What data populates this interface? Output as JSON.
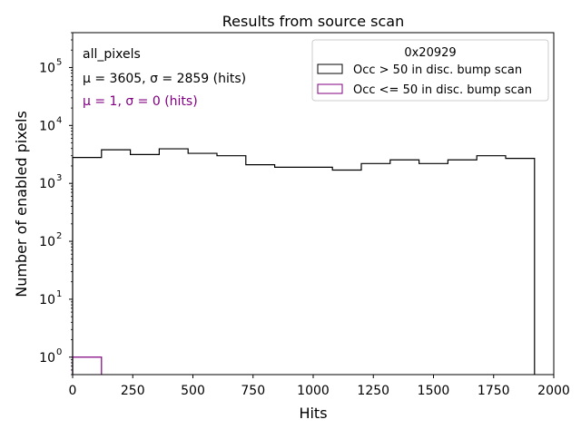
{
  "chart_data": {
    "type": "histogram",
    "title": "Results from source scan",
    "xlabel": "Hits",
    "ylabel": "Number of enabled pixels",
    "xlim": [
      0,
      2000
    ],
    "ylim": [
      0.5,
      400000
    ],
    "yscale": "log",
    "grid": false,
    "x_ticks": [
      0,
      250,
      500,
      750,
      1000,
      1250,
      1500,
      1750,
      2000
    ],
    "x_tick_labels": [
      "0",
      "250",
      "500",
      "750",
      "1000",
      "1250",
      "1500",
      "1750",
      "2000"
    ],
    "y_ticks": [
      1,
      10,
      100,
      1000,
      10000,
      100000
    ],
    "y_tick_labels": [
      "10",
      "10",
      "10",
      "10",
      "10",
      "10"
    ],
    "y_tick_exponents": [
      "0",
      "1",
      "2",
      "3",
      "4",
      "5"
    ],
    "annotations": [
      {
        "text": "all_pixels",
        "color": "#000000"
      },
      {
        "text": "μ = 3605, σ = 2859 (hits)",
        "color": "#000000"
      },
      {
        "text": "μ = 1, σ = 0 (hits)",
        "color": "#800080"
      }
    ],
    "legend": {
      "title": "0x20929",
      "placement": "top-right",
      "entries": [
        {
          "label": "Occ > 50 in disc. bump scan",
          "color": "#000000"
        },
        {
          "label": "Occ <= 50 in disc. bump scan",
          "color": "#800080"
        }
      ]
    },
    "series": [
      {
        "name": "Occ > 50 in disc. bump scan",
        "color": "#000000",
        "bin_edges": [
          0,
          120,
          240,
          360,
          480,
          600,
          720,
          840,
          960,
          1080,
          1200,
          1320,
          1440,
          1560,
          1680,
          1800,
          1920
        ],
        "values": [
          2800,
          3800,
          3150,
          3950,
          3300,
          3000,
          2100,
          1900,
          1900,
          1700,
          2200,
          2550,
          2200,
          2550,
          3000,
          2700
        ]
      },
      {
        "name": "Occ <= 50 in disc. bump scan",
        "color": "#800080",
        "bin_edges": [
          0,
          120
        ],
        "values": [
          1
        ]
      }
    ]
  }
}
